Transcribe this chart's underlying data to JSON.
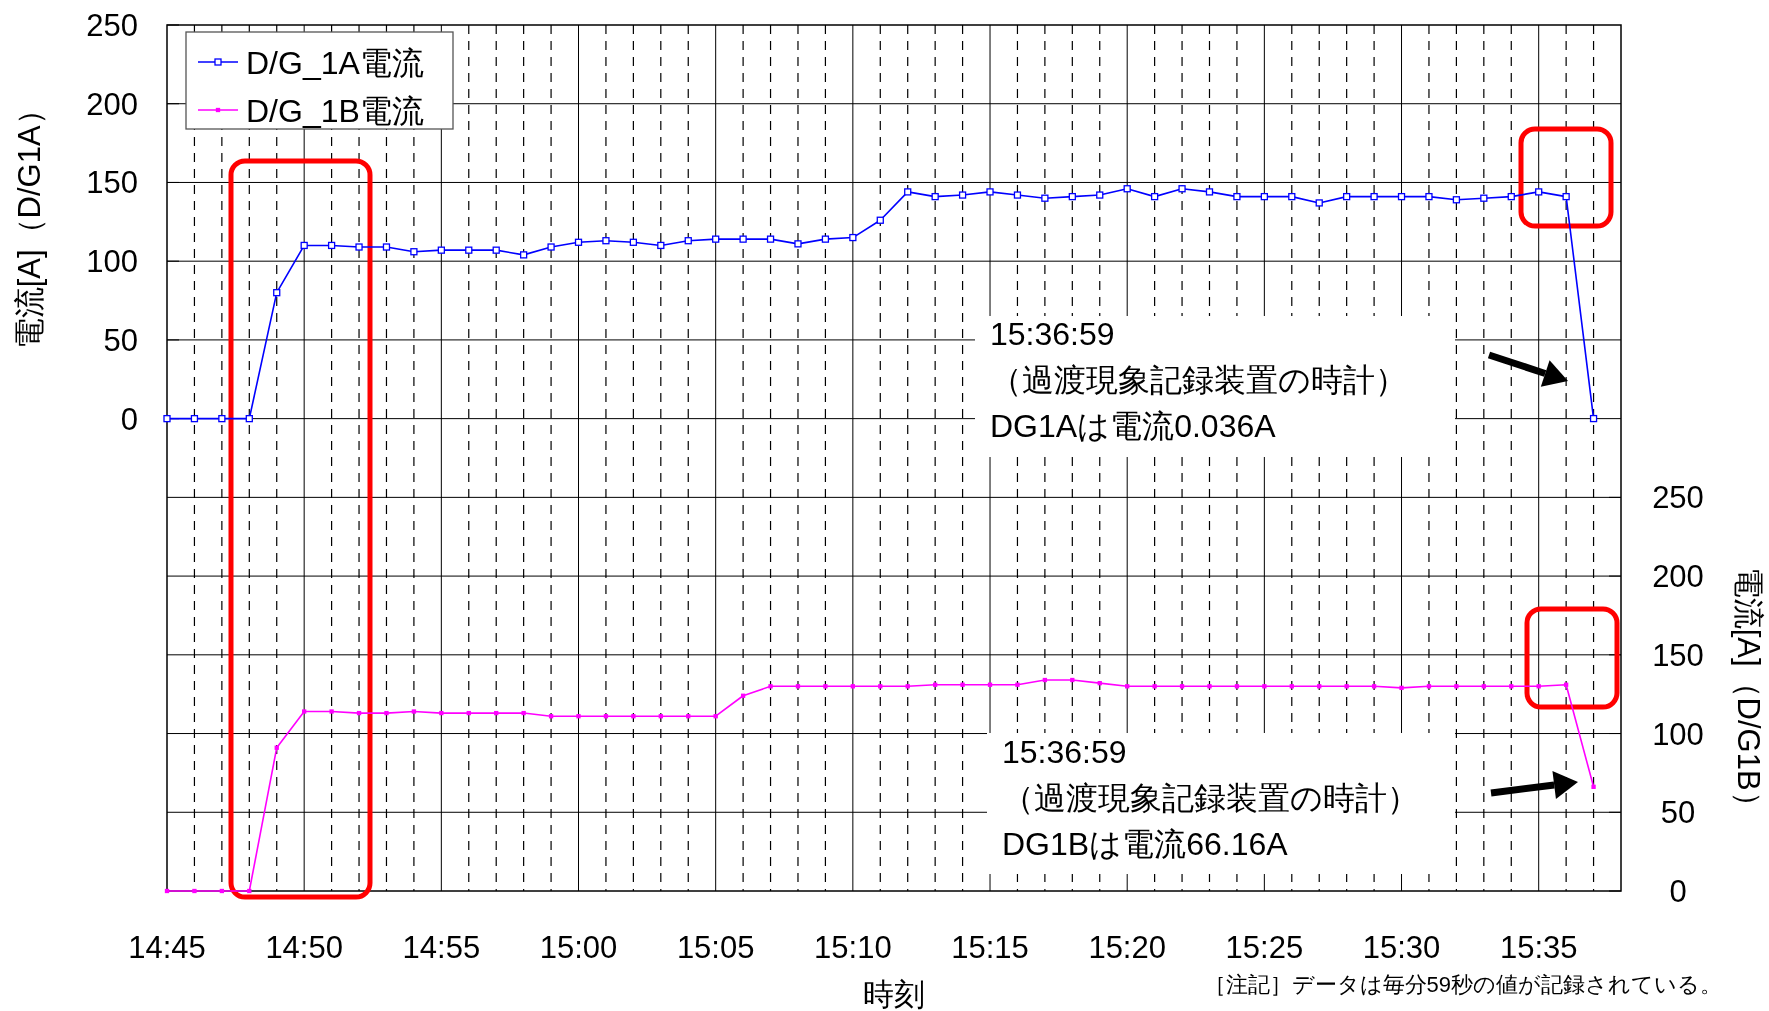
{
  "chart_data": {
    "type": "line",
    "xlabel": "時刻",
    "ylabel": "電流[A]（D/G1A）",
    "y2label": "電流[A]（D/G1B）",
    "categories": [
      "14:45",
      null,
      null,
      null,
      null,
      "14:50",
      null,
      null,
      null,
      null,
      "14:55",
      null,
      null,
      null,
      null,
      "15:00",
      null,
      null,
      null,
      null,
      "15:05",
      null,
      null,
      null,
      null,
      "15:10",
      null,
      null,
      null,
      null,
      "15:15",
      null,
      null,
      null,
      null,
      "15:20",
      null,
      null,
      null,
      null,
      "15:25",
      null,
      null,
      null,
      null,
      "15:30",
      null,
      null,
      null,
      null,
      "15:35",
      null,
      null
    ],
    "series": [
      {
        "name": "D/G_1A電流",
        "color": "#0000ff",
        "values": [
          0,
          0,
          0,
          0,
          80,
          110,
          110,
          109,
          109,
          106,
          107,
          107,
          107,
          104,
          109,
          112,
          113,
          112,
          110,
          113,
          114,
          114,
          114,
          111,
          114,
          115,
          126,
          144,
          141,
          142,
          144,
          142,
          140,
          141,
          142,
          146,
          141,
          146,
          144,
          141,
          141,
          141,
          137,
          141,
          141,
          141,
          141,
          139,
          140,
          141,
          144,
          141,
          0.036
        ]
      },
      {
        "name": "D/G_1B電流",
        "color": "#ff00ff",
        "axis": "y2",
        "values": [
          0,
          0,
          0,
          0,
          91,
          114,
          114,
          113,
          113,
          114,
          113,
          113,
          113,
          113,
          111,
          111,
          111,
          111,
          111,
          111,
          111,
          124,
          130,
          130,
          130,
          130,
          130,
          130,
          131,
          131,
          131,
          131,
          134,
          134,
          132,
          130,
          130,
          130,
          130,
          130,
          130,
          130,
          130,
          130,
          130,
          129,
          130,
          130,
          130,
          130,
          130,
          131,
          66.16
        ]
      }
    ],
    "ylim": [
      -300,
      250
    ],
    "yticks": [
      0,
      50,
      100,
      150,
      200,
      250
    ],
    "y2lim": [
      0,
      550
    ],
    "y2ticks": [
      0,
      50,
      100,
      150,
      200,
      250
    ],
    "grid": true,
    "legend": "top left",
    "marker": "square",
    "annotations": [
      "15:36:59\n（過渡現象記録装置の時計）\nDG1Aは電流0.036A",
      "15:36:59\n（過渡現象記録装置の時計）\nDG1Bは電流66.16A",
      "［注記］データは毎分59秒の値が記録されている。"
    ]
  }
}
